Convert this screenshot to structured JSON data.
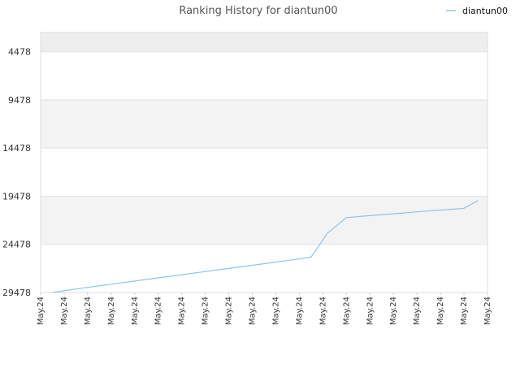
{
  "chart_data": {
    "type": "line",
    "title": "Ranking History for diantun00",
    "xlabel": "",
    "ylabel": "",
    "y_inverted": true,
    "ylim": [
      2478,
      29478
    ],
    "y_ticks": [
      4478,
      9478,
      14478,
      19478,
      24478,
      29478
    ],
    "y_tick_labels": [
      "4478",
      "9478",
      "14478",
      "19478",
      "24478",
      "29478"
    ],
    "x_tick_labels": [
      "May.24",
      "May.24",
      "May.24",
      "May.24",
      "May.24",
      "May.24",
      "May.24",
      "May.24",
      "May.24",
      "May.24",
      "May.24",
      "May.24",
      "May.24",
      "May.24",
      "May.24",
      "May.24",
      "May.24",
      "May.24",
      "May.24",
      "May.24"
    ],
    "x": [
      0.5,
      1,
      2,
      3,
      4,
      5,
      6,
      7,
      8,
      9,
      10,
      11,
      11.5,
      12.2,
      13,
      14,
      15,
      16,
      17,
      18,
      18.6
    ],
    "series": [
      {
        "name": "diantun00",
        "color": "#90c4ee",
        "values": [
          29480,
          29300,
          28950,
          28620,
          28290,
          27960,
          27630,
          27300,
          26980,
          26650,
          26320,
          25990,
          25800,
          23300,
          21700,
          21500,
          21300,
          21100,
          20920,
          20730,
          19930
        ]
      }
    ],
    "grid": true,
    "band_colors": [
      "#eeeeee",
      "#ffffff",
      "#f3f3f3",
      "#ffffff",
      "#f3f3f3",
      "#ffffff"
    ],
    "legend_position": "top-right",
    "legend_label": "diantun00"
  }
}
